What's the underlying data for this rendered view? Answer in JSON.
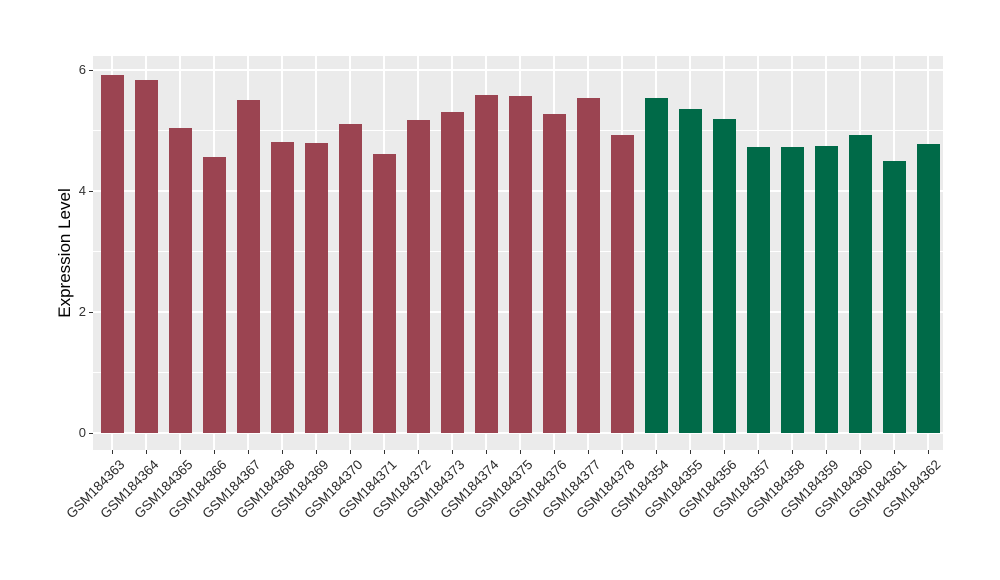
{
  "chart_data": {
    "type": "bar",
    "title": "",
    "xlabel": "",
    "ylabel": "Expression Level",
    "ylim": [
      0,
      6.2
    ],
    "yticks": [
      0,
      2,
      4,
      6
    ],
    "yticks_minor": [
      1,
      3,
      5
    ],
    "grid": "white major and minor gridlines on gray panel",
    "legend_position": "none",
    "categories": [
      "GSM184363",
      "GSM184364",
      "GSM184365",
      "GSM184366",
      "GSM184367",
      "GSM184368",
      "GSM184369",
      "GSM184370",
      "GSM184371",
      "GSM184372",
      "GSM184373",
      "GSM184374",
      "GSM184375",
      "GSM184376",
      "GSM184377",
      "GSM184378",
      "GSM184354",
      "GSM184355",
      "GSM184356",
      "GSM184357",
      "GSM184358",
      "GSM184359",
      "GSM184360",
      "GSM184361",
      "GSM184362"
    ],
    "values": [
      5.92,
      5.84,
      5.04,
      4.57,
      5.5,
      4.81,
      4.79,
      5.1,
      4.61,
      5.17,
      5.31,
      5.59,
      5.57,
      5.28,
      5.53,
      4.93,
      5.54,
      5.35,
      5.19,
      4.73,
      4.73,
      4.74,
      4.93,
      4.5,
      4.77
    ],
    "color_groups": [
      {
        "color": "#9B4451",
        "from": 0,
        "to": 15
      },
      {
        "color": "#006A48",
        "from": 16,
        "to": 24
      }
    ]
  },
  "colors": {
    "panel_background": "#EBEBEB",
    "gridline": "#FFFFFF",
    "bar_maroon": "#9B4451",
    "bar_green": "#006A48",
    "axis_text": "#333333",
    "tick_mark": "#333333"
  }
}
